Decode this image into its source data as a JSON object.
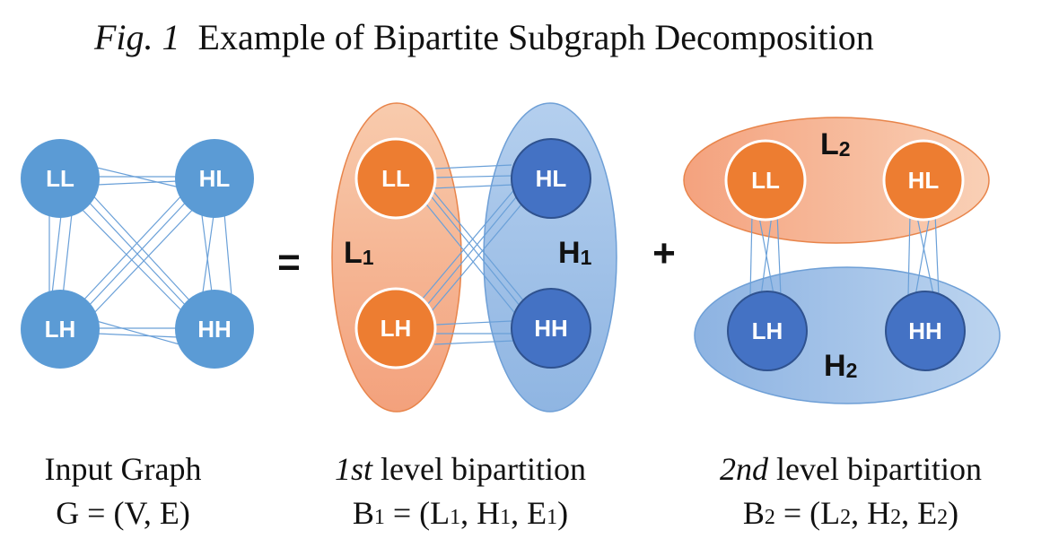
{
  "title": {
    "prefix": "Fig. 1",
    "text": "Example of Bipartite Subgraph Decomposition"
  },
  "operators": {
    "equals": "=",
    "plus": "+"
  },
  "panels": {
    "input": {
      "nodes": {
        "ll": "LL",
        "hl": "HL",
        "lh": "LH",
        "hh": "HH"
      },
      "caption_line1": "Input Graph",
      "caption_line2": "G = (V, E)"
    },
    "level1": {
      "nodes": {
        "ll": "LL",
        "hl": "HL",
        "lh": "LH",
        "hh": "HH"
      },
      "set_low": {
        "base": "L",
        "sub": "1"
      },
      "set_high": {
        "base": "H",
        "sub": "1"
      },
      "caption_italic": "1st",
      "caption_rest": " level bipartition",
      "formula": {
        "b": "B",
        "b_sub": "1",
        "open": " = (",
        "l": "L",
        "l_sub": "1",
        "sep1": ", ",
        "h": "H",
        "h_sub": "1",
        "sep2": ", ",
        "e": "E",
        "e_sub": "1",
        "close": ")"
      }
    },
    "level2": {
      "nodes": {
        "ll": "LL",
        "hl": "HL",
        "lh": "LH",
        "hh": "HH"
      },
      "set_low": {
        "base": "L",
        "sub": "2"
      },
      "set_high": {
        "base": "H",
        "sub": "2"
      },
      "caption_italic": "2nd",
      "caption_rest": " level bipartition",
      "formula": {
        "b": "B",
        "b_sub": "2",
        "open": " = (",
        "l": "L",
        "l_sub": "2",
        "sep1": ", ",
        "h": "H",
        "h_sub": "2",
        "sep2": ", ",
        "e": "E",
        "e_sub": "2",
        "close": ")"
      }
    }
  },
  "colors": {
    "input_node": "#5b9bd5",
    "orange_node": "#ed7d31",
    "blue_node": "#4472c4",
    "orange_region": "#f4b183",
    "blue_region": "#9dc3e6"
  }
}
